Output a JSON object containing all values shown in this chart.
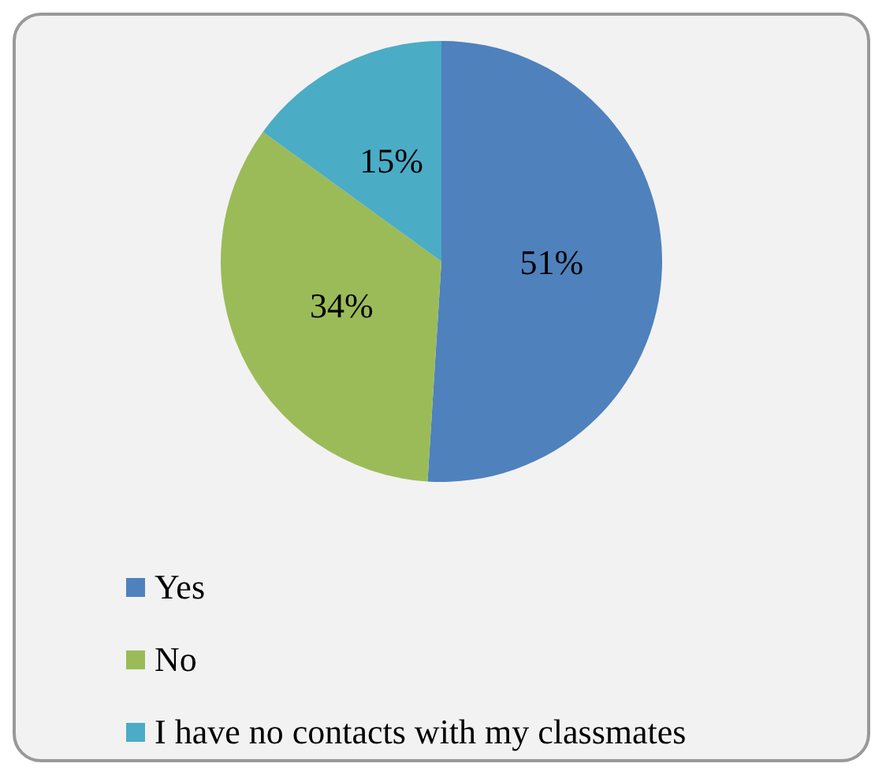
{
  "chart_data": {
    "type": "pie",
    "categories": [
      "Yes",
      "No",
      "I have no contacts with my classmates"
    ],
    "values": [
      51,
      34,
      15
    ],
    "colors": [
      "#4f81bd",
      "#9bbb59",
      "#4bacc6"
    ],
    "value_labels": [
      "51%",
      "34%",
      "15%"
    ],
    "legend": "bottom"
  }
}
